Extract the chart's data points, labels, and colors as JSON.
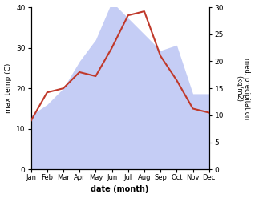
{
  "months": [
    "Jan",
    "Feb",
    "Mar",
    "Apr",
    "May",
    "Jun",
    "Jul",
    "Aug",
    "Sep",
    "Oct",
    "Nov",
    "Dec"
  ],
  "temperature": [
    12,
    19,
    20,
    24,
    23,
    30,
    38,
    39,
    28,
    22,
    15,
    14
  ],
  "precipitation": [
    10,
    12,
    15,
    20,
    24,
    31,
    28,
    25,
    22,
    23,
    14,
    14
  ],
  "temp_color": "#c0392b",
  "precip_fill_color": "#c5cdf5",
  "ylabel_left": "max temp (C)",
  "ylabel_right": "med. precipitation\n(kg/m2)",
  "xlabel": "date (month)",
  "ylim_left": [
    0,
    40
  ],
  "ylim_right": [
    0,
    30
  ],
  "yticks_left": [
    0,
    10,
    20,
    30,
    40
  ],
  "yticks_right": [
    0,
    5,
    10,
    15,
    20,
    25,
    30
  ],
  "background_color": "#ffffff"
}
